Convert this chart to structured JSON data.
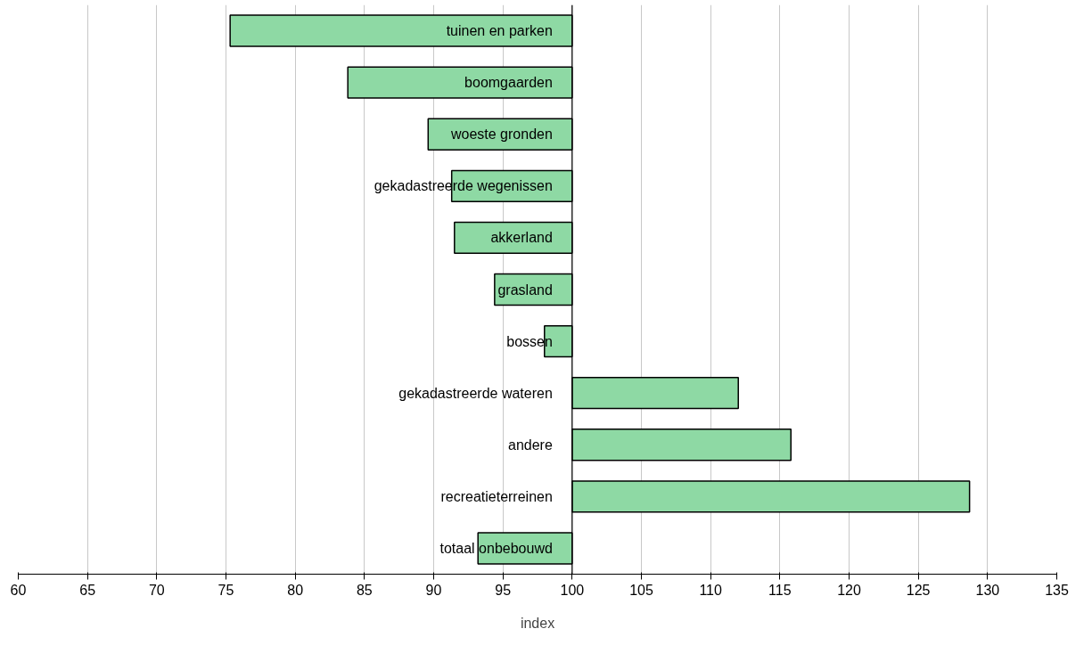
{
  "chart_data": {
    "type": "bar",
    "orientation": "horizontal",
    "xlabel": "index",
    "categories": [
      "tuinen en parken",
      "boomgaarden",
      "woeste gronden",
      "gekadastreerde wegenissen",
      "akkerland",
      "grasland",
      "bossen",
      "gekadastreerde wateren",
      "andere",
      "recreatieterreinen",
      "totaal onbebouwd"
    ],
    "values": [
      -24.7,
      -16.2,
      -10.4,
      -8.7,
      -8.5,
      -5.6,
      -2.0,
      12.0,
      15.8,
      28.7,
      -6.8
    ],
    "base": [
      100,
      100,
      100,
      100,
      100,
      100,
      100,
      100,
      100,
      100,
      100
    ],
    "color": "#8ed9a4",
    "xlim": [
      60,
      135
    ],
    "xticks": [
      60,
      65,
      70,
      75,
      80,
      85,
      90,
      95,
      100,
      105,
      110,
      115,
      120,
      125,
      130,
      135
    ],
    "grid": "x",
    "tick_labels": "x"
  }
}
